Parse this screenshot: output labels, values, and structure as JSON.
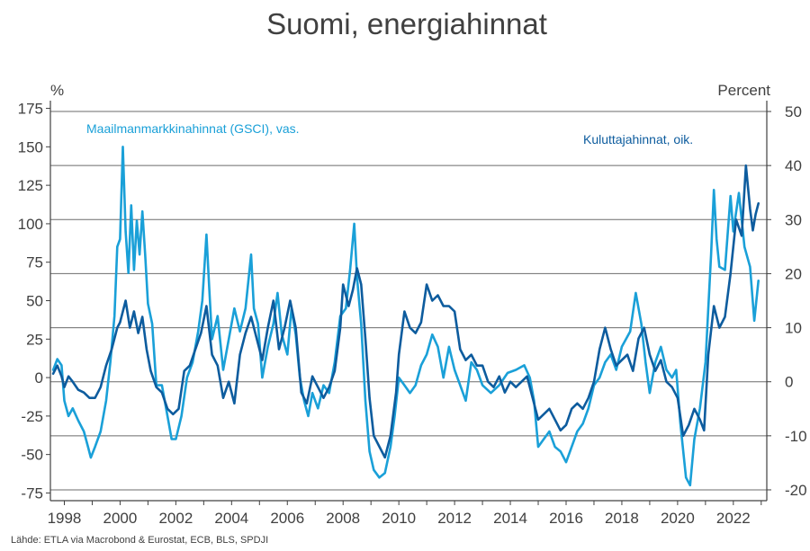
{
  "chart_data": {
    "type": "line",
    "title": "Suomi, energiahinnat",
    "source": "Lähde: ETLA via Macrobond & Eurostat, ECB, BLS, SPDJI",
    "left_axis": {
      "unit": "%",
      "range": [
        -80,
        180
      ],
      "ticks": [
        175,
        150,
        125,
        100,
        75,
        50,
        25,
        0,
        -25,
        -50,
        -75
      ]
    },
    "right_axis": {
      "unit": "Percent",
      "range": [
        -22,
        52
      ],
      "ticks": [
        50,
        40,
        30,
        20,
        10,
        0,
        -10,
        -20
      ]
    },
    "x_axis": {
      "range": [
        1997.5,
        2023.2
      ],
      "ticks": [
        1998,
        2000,
        2002,
        2004,
        2006,
        2008,
        2010,
        2012,
        2014,
        2016,
        2018,
        2020,
        2022
      ]
    },
    "grid": "horizontal lines at right-axis ticks",
    "series": [
      {
        "name": "Maailmanmarkkinahinnat (GSCI), vas.",
        "axis": "left",
        "color": "#1aa0d8",
        "points": [
          [
            1997.6,
            5
          ],
          [
            1997.75,
            12
          ],
          [
            1997.9,
            8
          ],
          [
            1998.0,
            -15
          ],
          [
            1998.15,
            -25
          ],
          [
            1998.3,
            -20
          ],
          [
            1998.5,
            -28
          ],
          [
            1998.7,
            -35
          ],
          [
            1998.85,
            -45
          ],
          [
            1998.95,
            -52
          ],
          [
            1999.1,
            -45
          ],
          [
            1999.3,
            -35
          ],
          [
            1999.5,
            -15
          ],
          [
            1999.65,
            10
          ],
          [
            1999.8,
            40
          ],
          [
            1999.9,
            85
          ],
          [
            2000.0,
            90
          ],
          [
            2000.1,
            150
          ],
          [
            2000.2,
            95
          ],
          [
            2000.3,
            68
          ],
          [
            2000.4,
            112
          ],
          [
            2000.5,
            70
          ],
          [
            2000.6,
            102
          ],
          [
            2000.7,
            80
          ],
          [
            2000.8,
            108
          ],
          [
            2000.9,
            80
          ],
          [
            2001.0,
            48
          ],
          [
            2001.15,
            35
          ],
          [
            2001.3,
            -5
          ],
          [
            2001.5,
            -5
          ],
          [
            2001.7,
            -25
          ],
          [
            2001.85,
            -40
          ],
          [
            2002.0,
            -40
          ],
          [
            2002.2,
            -25
          ],
          [
            2002.4,
            0
          ],
          [
            2002.6,
            10
          ],
          [
            2002.8,
            30
          ],
          [
            2002.95,
            50
          ],
          [
            2003.1,
            93
          ],
          [
            2003.2,
            58
          ],
          [
            2003.3,
            25
          ],
          [
            2003.5,
            40
          ],
          [
            2003.7,
            5
          ],
          [
            2003.9,
            25
          ],
          [
            2004.1,
            45
          ],
          [
            2004.3,
            30
          ],
          [
            2004.5,
            45
          ],
          [
            2004.7,
            80
          ],
          [
            2004.8,
            45
          ],
          [
            2004.95,
            35
          ],
          [
            2005.1,
            0
          ],
          [
            2005.3,
            20
          ],
          [
            2005.5,
            35
          ],
          [
            2005.65,
            55
          ],
          [
            2005.8,
            28
          ],
          [
            2006.0,
            15
          ],
          [
            2006.15,
            45
          ],
          [
            2006.3,
            28
          ],
          [
            2006.45,
            0
          ],
          [
            2006.6,
            -15
          ],
          [
            2006.75,
            -25
          ],
          [
            2006.9,
            -10
          ],
          [
            2007.1,
            -20
          ],
          [
            2007.3,
            -5
          ],
          [
            2007.5,
            -10
          ],
          [
            2007.7,
            10
          ],
          [
            2007.9,
            40
          ],
          [
            2008.1,
            45
          ],
          [
            2008.25,
            70
          ],
          [
            2008.4,
            100
          ],
          [
            2008.5,
            65
          ],
          [
            2008.65,
            35
          ],
          [
            2008.8,
            -15
          ],
          [
            2008.95,
            -48
          ],
          [
            2009.1,
            -60
          ],
          [
            2009.3,
            -65
          ],
          [
            2009.5,
            -62
          ],
          [
            2009.7,
            -45
          ],
          [
            2009.85,
            -25
          ],
          [
            2010.0,
            0
          ],
          [
            2010.2,
            -5
          ],
          [
            2010.4,
            -10
          ],
          [
            2010.6,
            -5
          ],
          [
            2010.8,
            8
          ],
          [
            2011.0,
            15
          ],
          [
            2011.2,
            28
          ],
          [
            2011.4,
            20
          ],
          [
            2011.6,
            0
          ],
          [
            2011.8,
            20
          ],
          [
            2012.0,
            5
          ],
          [
            2012.2,
            -5
          ],
          [
            2012.4,
            -15
          ],
          [
            2012.6,
            10
          ],
          [
            2012.8,
            5
          ],
          [
            2013.0,
            -5
          ],
          [
            2013.3,
            -10
          ],
          [
            2013.6,
            -5
          ],
          [
            2013.9,
            3
          ],
          [
            2014.2,
            5
          ],
          [
            2014.5,
            8
          ],
          [
            2014.7,
            0
          ],
          [
            2014.85,
            -15
          ],
          [
            2015.0,
            -45
          ],
          [
            2015.2,
            -40
          ],
          [
            2015.4,
            -35
          ],
          [
            2015.6,
            -45
          ],
          [
            2015.8,
            -48
          ],
          [
            2016.0,
            -55
          ],
          [
            2016.2,
            -45
          ],
          [
            2016.4,
            -35
          ],
          [
            2016.6,
            -30
          ],
          [
            2016.8,
            -20
          ],
          [
            2017.0,
            -5
          ],
          [
            2017.2,
            0
          ],
          [
            2017.4,
            10
          ],
          [
            2017.6,
            15
          ],
          [
            2017.8,
            5
          ],
          [
            2018.0,
            20
          ],
          [
            2018.3,
            30
          ],
          [
            2018.5,
            55
          ],
          [
            2018.7,
            35
          ],
          [
            2018.85,
            10
          ],
          [
            2019.0,
            -10
          ],
          [
            2019.2,
            10
          ],
          [
            2019.4,
            20
          ],
          [
            2019.6,
            5
          ],
          [
            2019.8,
            0
          ],
          [
            2019.95,
            5
          ],
          [
            2020.1,
            -30
          ],
          [
            2020.3,
            -65
          ],
          [
            2020.45,
            -70
          ],
          [
            2020.6,
            -40
          ],
          [
            2020.8,
            -20
          ],
          [
            2021.0,
            10
          ],
          [
            2021.2,
            80
          ],
          [
            2021.3,
            122
          ],
          [
            2021.4,
            90
          ],
          [
            2021.5,
            72
          ],
          [
            2021.7,
            70
          ],
          [
            2021.9,
            118
          ],
          [
            2022.0,
            95
          ],
          [
            2022.2,
            120
          ],
          [
            2022.4,
            85
          ],
          [
            2022.6,
            72
          ],
          [
            2022.75,
            37
          ],
          [
            2022.9,
            63
          ]
        ]
      },
      {
        "name": "Kuluttajahinnat, oik.",
        "axis": "right",
        "color": "#0d5c9e",
        "points": [
          [
            1997.6,
            1.5
          ],
          [
            1997.75,
            3
          ],
          [
            1997.9,
            1
          ],
          [
            1998.0,
            -1
          ],
          [
            1998.15,
            1
          ],
          [
            1998.3,
            0
          ],
          [
            1998.5,
            -1.5
          ],
          [
            1998.7,
            -2
          ],
          [
            1998.9,
            -3
          ],
          [
            1999.1,
            -3
          ],
          [
            1999.3,
            -1
          ],
          [
            1999.5,
            3
          ],
          [
            1999.7,
            6
          ],
          [
            1999.9,
            10
          ],
          [
            2000.0,
            11
          ],
          [
            2000.2,
            15
          ],
          [
            2000.35,
            10
          ],
          [
            2000.5,
            13
          ],
          [
            2000.65,
            9
          ],
          [
            2000.8,
            12
          ],
          [
            2000.95,
            6
          ],
          [
            2001.1,
            2
          ],
          [
            2001.3,
            -1
          ],
          [
            2001.5,
            -2
          ],
          [
            2001.7,
            -5
          ],
          [
            2001.9,
            -6
          ],
          [
            2002.1,
            -5
          ],
          [
            2002.3,
            2
          ],
          [
            2002.5,
            3
          ],
          [
            2002.7,
            6
          ],
          [
            2002.9,
            9
          ],
          [
            2003.1,
            14
          ],
          [
            2003.3,
            5
          ],
          [
            2003.5,
            3
          ],
          [
            2003.7,
            -3
          ],
          [
            2003.9,
            0
          ],
          [
            2004.1,
            -4
          ],
          [
            2004.3,
            5
          ],
          [
            2004.5,
            9
          ],
          [
            2004.7,
            12
          ],
          [
            2004.9,
            8
          ],
          [
            2005.1,
            4
          ],
          [
            2005.3,
            10
          ],
          [
            2005.5,
            15
          ],
          [
            2005.7,
            6
          ],
          [
            2005.9,
            10
          ],
          [
            2006.1,
            15
          ],
          [
            2006.3,
            10
          ],
          [
            2006.5,
            -2
          ],
          [
            2006.7,
            -4
          ],
          [
            2006.9,
            1
          ],
          [
            2007.1,
            -1
          ],
          [
            2007.3,
            -3
          ],
          [
            2007.5,
            -1
          ],
          [
            2007.7,
            2
          ],
          [
            2007.9,
            10
          ],
          [
            2008.0,
            18
          ],
          [
            2008.2,
            14
          ],
          [
            2008.35,
            17
          ],
          [
            2008.5,
            21
          ],
          [
            2008.65,
            18
          ],
          [
            2008.8,
            8
          ],
          [
            2008.95,
            -3
          ],
          [
            2009.1,
            -10
          ],
          [
            2009.3,
            -12
          ],
          [
            2009.5,
            -14
          ],
          [
            2009.7,
            -10
          ],
          [
            2009.9,
            -2
          ],
          [
            2010.0,
            5
          ],
          [
            2010.2,
            13
          ],
          [
            2010.4,
            10
          ],
          [
            2010.6,
            9
          ],
          [
            2010.8,
            11
          ],
          [
            2011.0,
            18
          ],
          [
            2011.2,
            15
          ],
          [
            2011.4,
            16
          ],
          [
            2011.6,
            14
          ],
          [
            2011.8,
            14
          ],
          [
            2012.0,
            13
          ],
          [
            2012.2,
            6
          ],
          [
            2012.4,
            4
          ],
          [
            2012.6,
            5
          ],
          [
            2012.8,
            3
          ],
          [
            2013.0,
            3
          ],
          [
            2013.2,
            0
          ],
          [
            2013.4,
            -1
          ],
          [
            2013.6,
            1
          ],
          [
            2013.8,
            -2
          ],
          [
            2014.0,
            0
          ],
          [
            2014.2,
            -1
          ],
          [
            2014.4,
            0
          ],
          [
            2014.6,
            1
          ],
          [
            2014.8,
            -3
          ],
          [
            2015.0,
            -7
          ],
          [
            2015.2,
            -6
          ],
          [
            2015.4,
            -5
          ],
          [
            2015.6,
            -7
          ],
          [
            2015.8,
            -9
          ],
          [
            2016.0,
            -8
          ],
          [
            2016.2,
            -5
          ],
          [
            2016.4,
            -4
          ],
          [
            2016.6,
            -5
          ],
          [
            2016.8,
            -3
          ],
          [
            2017.0,
            0
          ],
          [
            2017.2,
            6
          ],
          [
            2017.4,
            10
          ],
          [
            2017.6,
            6
          ],
          [
            2017.8,
            3
          ],
          [
            2018.0,
            4
          ],
          [
            2018.2,
            5
          ],
          [
            2018.4,
            2
          ],
          [
            2018.6,
            8
          ],
          [
            2018.8,
            10
          ],
          [
            2019.0,
            5
          ],
          [
            2019.2,
            2
          ],
          [
            2019.4,
            4
          ],
          [
            2019.6,
            0
          ],
          [
            2019.8,
            -1
          ],
          [
            2020.0,
            -3
          ],
          [
            2020.2,
            -10
          ],
          [
            2020.4,
            -8
          ],
          [
            2020.6,
            -5
          ],
          [
            2020.8,
            -7
          ],
          [
            2020.95,
            -9
          ],
          [
            2021.1,
            5
          ],
          [
            2021.3,
            14
          ],
          [
            2021.5,
            10
          ],
          [
            2021.7,
            12
          ],
          [
            2021.9,
            20
          ],
          [
            2022.1,
            30
          ],
          [
            2022.3,
            27
          ],
          [
            2022.45,
            40
          ],
          [
            2022.6,
            32
          ],
          [
            2022.7,
            28
          ],
          [
            2022.8,
            31
          ],
          [
            2022.9,
            33
          ]
        ]
      }
    ],
    "annotations": [
      {
        "text": "Maailmanmarkkinahinnat (GSCI), vas.",
        "color": "#1aa0d8"
      },
      {
        "text": "Kuluttajahinnat, oik.",
        "color": "#0d5c9e"
      }
    ]
  }
}
